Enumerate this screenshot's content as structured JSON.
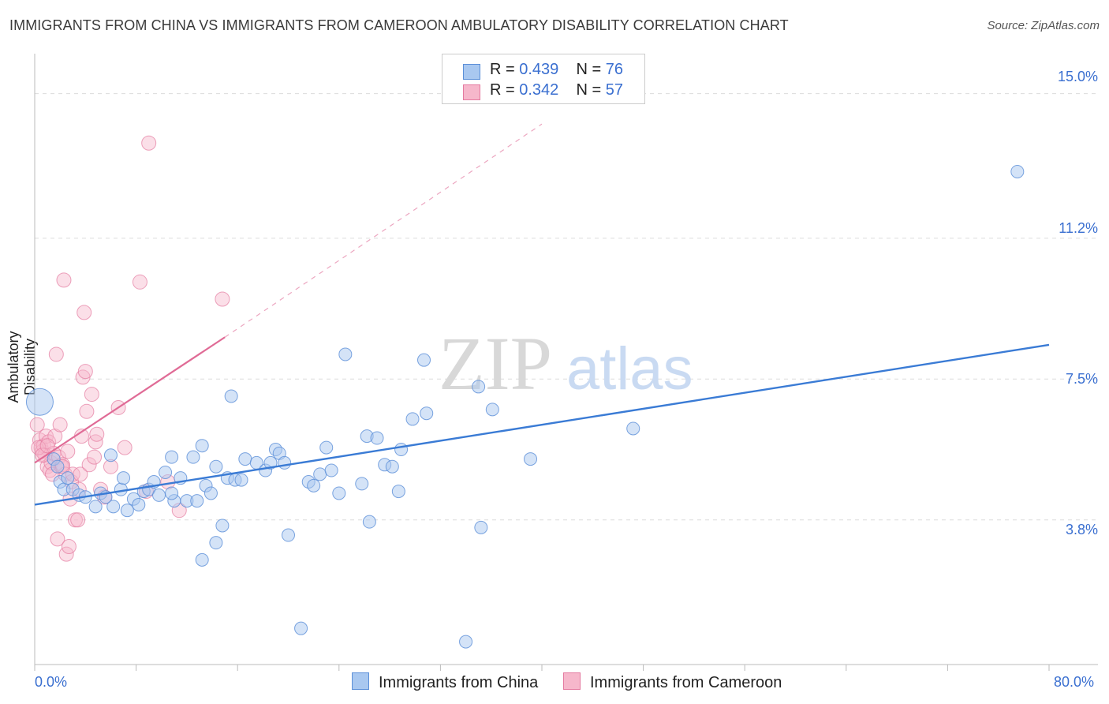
{
  "title": "IMMIGRANTS FROM CHINA VS IMMIGRANTS FROM CAMEROON AMBULATORY DISABILITY CORRELATION CHART",
  "source": "Source: ZipAtlas.com",
  "watermark": {
    "zip": "ZIP",
    "atlas": "atlas"
  },
  "legend": {
    "china": {
      "r_label": "R = ",
      "r_value": "0.439",
      "n_label": "N = ",
      "n_value": "76"
    },
    "cameroon": {
      "r_label": "R = ",
      "r_value": "0.342",
      "n_label": "N = ",
      "n_value": "57"
    }
  },
  "bottom_legend": {
    "china": "Immigrants from China",
    "cameroon": "Immigrants from Cameroon"
  },
  "colors": {
    "china_fill": "#a9c8f0",
    "china_stroke": "#5b8fd8",
    "china_line": "#3a7bd5",
    "cameroon_fill": "#f6b7cb",
    "cameroon_stroke": "#e47aa0",
    "cameroon_line": "#e06b96",
    "axis_text": "#3a6fd0"
  },
  "chart_data": {
    "type": "scatter",
    "title": "IMMIGRANTS FROM CHINA VS IMMIGRANTS FROM CAMEROON AMBULATORY DISABILITY CORRELATION CHART",
    "xlabel": "",
    "ylabel": "Ambulatory Disability",
    "xlim": [
      0,
      80
    ],
    "ylim": [
      0,
      15.8
    ],
    "x_tick_labels": [
      "0.0%",
      "80.0%"
    ],
    "y_ticks": [
      3.8,
      7.5,
      11.2,
      15.0
    ],
    "y_tick_labels": [
      "3.8%",
      "7.5%",
      "11.2%",
      "15.0%"
    ],
    "series": [
      {
        "name": "Immigrants from China",
        "r": 0.439,
        "n": 76,
        "trend": {
          "x": [
            0,
            80
          ],
          "y": [
            4.2,
            8.4
          ]
        },
        "points": [
          [
            0.4,
            6.9
          ],
          [
            1.5,
            5.4
          ],
          [
            2.0,
            4.8
          ],
          [
            2.3,
            4.6
          ],
          [
            2.6,
            4.9
          ],
          [
            3.0,
            4.6
          ],
          [
            3.5,
            4.45
          ],
          [
            4.0,
            4.4
          ],
          [
            4.8,
            4.15
          ],
          [
            5.2,
            4.5
          ],
          [
            6.0,
            5.5
          ],
          [
            6.2,
            4.15
          ],
          [
            6.8,
            4.6
          ],
          [
            7.0,
            4.9
          ],
          [
            7.3,
            4.05
          ],
          [
            7.8,
            4.35
          ],
          [
            8.2,
            4.2
          ],
          [
            8.6,
            4.55
          ],
          [
            9.0,
            4.6
          ],
          [
            9.4,
            4.8
          ],
          [
            9.8,
            4.45
          ],
          [
            10.3,
            5.05
          ],
          [
            10.8,
            5.45
          ],
          [
            11.0,
            4.3
          ],
          [
            11.5,
            4.9
          ],
          [
            12.0,
            4.3
          ],
          [
            12.5,
            5.45
          ],
          [
            12.8,
            4.3
          ],
          [
            13.2,
            5.75
          ],
          [
            13.5,
            4.7
          ],
          [
            13.9,
            4.5
          ],
          [
            14.3,
            5.2
          ],
          [
            14.8,
            3.65
          ],
          [
            15.2,
            4.9
          ],
          [
            15.5,
            7.05
          ],
          [
            15.8,
            4.85
          ],
          [
            16.3,
            4.85
          ],
          [
            16.6,
            5.4
          ],
          [
            17.5,
            5.3
          ],
          [
            18.2,
            5.1
          ],
          [
            18.6,
            5.3
          ],
          [
            19.0,
            5.65
          ],
          [
            19.3,
            5.55
          ],
          [
            19.7,
            5.3
          ],
          [
            20.0,
            3.4
          ],
          [
            21.0,
            0.95
          ],
          [
            21.6,
            4.8
          ],
          [
            22.0,
            4.7
          ],
          [
            22.5,
            5.0
          ],
          [
            23.0,
            5.7
          ],
          [
            23.4,
            5.1
          ],
          [
            24.0,
            4.5
          ],
          [
            24.5,
            8.15
          ],
          [
            25.8,
            4.75
          ],
          [
            26.2,
            6.0
          ],
          [
            26.4,
            3.75
          ],
          [
            27.0,
            5.95
          ],
          [
            27.6,
            5.25
          ],
          [
            28.2,
            5.2
          ],
          [
            28.7,
            4.55
          ],
          [
            28.9,
            5.65
          ],
          [
            29.8,
            6.45
          ],
          [
            30.7,
            8.0
          ],
          [
            30.9,
            6.6
          ],
          [
            34.0,
            0.6
          ],
          [
            35.0,
            7.3
          ],
          [
            35.2,
            3.6
          ],
          [
            36.1,
            6.7
          ],
          [
            39.1,
            5.4
          ],
          [
            47.2,
            6.2
          ],
          [
            13.2,
            2.75
          ],
          [
            10.8,
            4.5
          ],
          [
            5.6,
            4.4
          ],
          [
            1.8,
            5.2
          ],
          [
            77.5,
            12.95
          ],
          [
            14.3,
            3.2
          ]
        ],
        "point_sizes": [
          18
        ]
      },
      {
        "name": "Immigrants from Cameroon",
        "r": 0.342,
        "n": 57,
        "trend_solid": {
          "x": [
            0,
            15.0
          ],
          "y": [
            5.3,
            8.6
          ]
        },
        "trend_dashed": {
          "x": [
            15.0,
            40.0
          ],
          "y": [
            8.6,
            14.2
          ]
        },
        "points": [
          [
            0.2,
            6.3
          ],
          [
            0.4,
            5.9
          ],
          [
            0.5,
            5.7
          ],
          [
            0.6,
            5.6
          ],
          [
            0.7,
            5.75
          ],
          [
            0.8,
            5.5
          ],
          [
            0.9,
            6.0
          ],
          [
            1.0,
            5.2
          ],
          [
            1.1,
            5.85
          ],
          [
            1.2,
            5.1
          ],
          [
            1.3,
            5.3
          ],
          [
            1.4,
            5.0
          ],
          [
            1.5,
            5.55
          ],
          [
            1.6,
            6.0
          ],
          [
            1.7,
            8.15
          ],
          [
            1.8,
            3.3
          ],
          [
            1.9,
            5.45
          ],
          [
            2.0,
            6.3
          ],
          [
            2.1,
            5.2
          ],
          [
            2.2,
            5.25
          ],
          [
            2.3,
            10.1
          ],
          [
            2.4,
            5.0
          ],
          [
            2.5,
            2.9
          ],
          [
            2.6,
            5.6
          ],
          [
            2.7,
            3.1
          ],
          [
            2.8,
            4.35
          ],
          [
            2.9,
            4.8
          ],
          [
            3.0,
            5.0
          ],
          [
            3.2,
            3.8
          ],
          [
            3.4,
            3.8
          ],
          [
            3.5,
            4.6
          ],
          [
            3.6,
            5.0
          ],
          [
            3.7,
            6.0
          ],
          [
            3.8,
            7.55
          ],
          [
            3.9,
            9.25
          ],
          [
            4.0,
            7.7
          ],
          [
            4.1,
            6.65
          ],
          [
            4.3,
            5.25
          ],
          [
            4.5,
            7.1
          ],
          [
            4.7,
            5.45
          ],
          [
            4.8,
            5.85
          ],
          [
            4.9,
            6.05
          ],
          [
            5.2,
            4.6
          ],
          [
            5.5,
            4.4
          ],
          [
            6.0,
            5.2
          ],
          [
            6.6,
            6.75
          ],
          [
            7.1,
            5.7
          ],
          [
            8.3,
            10.05
          ],
          [
            8.8,
            4.55
          ],
          [
            9.0,
            13.7
          ],
          [
            10.5,
            4.8
          ],
          [
            11.4,
            4.05
          ],
          [
            14.8,
            9.6
          ],
          [
            0.3,
            5.7
          ],
          [
            0.6,
            5.5
          ],
          [
            1.0,
            5.75
          ],
          [
            2.2,
            5.2
          ]
        ],
        "point_sizes": [
          12
        ]
      }
    ]
  }
}
